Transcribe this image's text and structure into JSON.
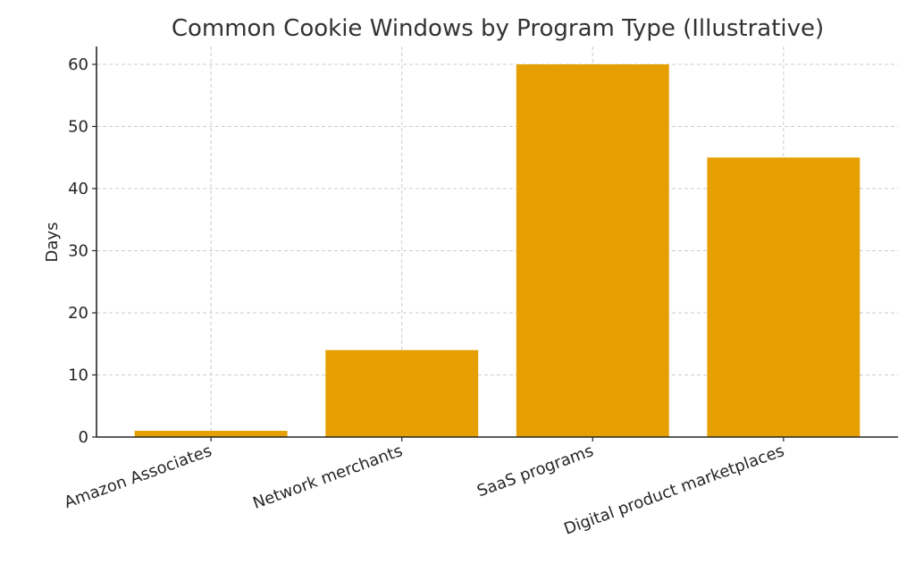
{
  "chart_data": {
    "type": "bar",
    "title": "Common Cookie Windows by Program Type (Illustrative)",
    "xlabel": "",
    "ylabel": "Days",
    "categories": [
      "Amazon Associates",
      "Network merchants",
      "SaaS programs",
      "Digital product marketplaces"
    ],
    "values": [
      1,
      14,
      60,
      45
    ],
    "ylim": [
      0,
      63
    ],
    "yticks": [
      0,
      10,
      20,
      30,
      40,
      50,
      60
    ],
    "grid": true,
    "legend": null,
    "bar_color": "#E69F00",
    "xtick_rotation": 20
  }
}
